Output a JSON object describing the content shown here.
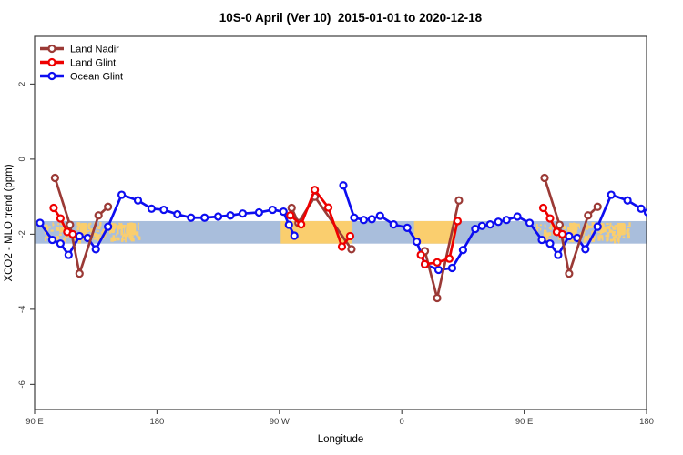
{
  "title": "10S-0 April (Ver 10)  2015-01-01 to 2020-12-18",
  "axis": {
    "x_label": "Longitude",
    "y_label": "XCO2 - MLO trend (ppm)"
  },
  "legend": [
    {
      "label": "Land Nadir",
      "color": "#9B3A36"
    },
    {
      "label": "Land Glint",
      "color": "#EE0000"
    },
    {
      "label": "Ocean Glint",
      "color": "#0D0DF0"
    }
  ],
  "chart_data": {
    "type": "line",
    "title": "10S-0 April (Ver 10)  2015-01-01 to 2020-12-18",
    "xlabel": "Longitude",
    "ylabel": "XCO2 - MLO trend (ppm)",
    "x_axis": {
      "range_deg": [
        0,
        450
      ],
      "ticks": [
        {
          "pos": 0,
          "label": "90 E"
        },
        {
          "pos": 90,
          "label": "180"
        },
        {
          "pos": 180,
          "label": "90 W"
        },
        {
          "pos": 270,
          "label": "0"
        },
        {
          "pos": 360,
          "label": "90 E"
        },
        {
          "pos": 450,
          "label": "180"
        }
      ]
    },
    "y_axis": {
      "range": [
        -6.67,
        3.27
      ],
      "ticks": [
        2,
        0,
        -2,
        -4,
        -6
      ]
    },
    "reference_band": {
      "y_from": -2.25,
      "y_to": -1.65,
      "ocean_color": "#A9BEDC",
      "land_color": "#FACE6E",
      "land_solid_deg": [
        [
          181,
          233
        ],
        [
          279,
          309
        ]
      ],
      "island_blobs": [
        {
          "from": 33.5,
          "to": 39,
          "hfrac": 0.5
        },
        {
          "from": 56,
          "to": 59,
          "hfrac": 0.45
        },
        {
          "from": 68,
          "to": 74.5,
          "hfrac": 0.55
        },
        {
          "from": 393.5,
          "to": 399,
          "hfrac": 0.5
        },
        {
          "from": 416,
          "to": 419,
          "hfrac": 0.45
        },
        {
          "from": 428,
          "to": 434.5,
          "hfrac": 0.55
        }
      ],
      "speckle_clusters": [
        {
          "from": 7,
          "to": 30,
          "density": 1.6,
          "seed": 11
        },
        {
          "from": 31,
          "to": 41,
          "density": 3.5,
          "seed": 23
        },
        {
          "from": 43,
          "to": 52,
          "density": 2.5,
          "seed": 37
        },
        {
          "from": 54,
          "to": 77,
          "density": 3.2,
          "seed": 51
        },
        {
          "from": 367,
          "to": 390,
          "density": 1.6,
          "seed": 61
        },
        {
          "from": 391,
          "to": 401,
          "density": 3.5,
          "seed": 73
        },
        {
          "from": 403,
          "to": 412,
          "density": 2.5,
          "seed": 87
        },
        {
          "from": 414,
          "to": 437,
          "density": 3.2,
          "seed": 95
        }
      ]
    },
    "series": [
      {
        "name": "Ocean Glint",
        "color": "#0D0DF0",
        "segments": [
          [
            [
              4,
              -1.7
            ],
            [
              13,
              -2.15
            ],
            [
              19,
              -2.25
            ],
            [
              25,
              -2.55
            ],
            [
              33,
              -2.05
            ],
            [
              39,
              -2.1
            ],
            [
              45,
              -2.4
            ],
            [
              54,
              -1.8
            ],
            [
              64,
              -0.95
            ],
            [
              76,
              -1.1
            ],
            [
              86,
              -1.32
            ],
            [
              95,
              -1.35
            ],
            [
              105,
              -1.47
            ],
            [
              115,
              -1.56
            ],
            [
              125,
              -1.56
            ],
            [
              135,
              -1.53
            ],
            [
              144,
              -1.5
            ],
            [
              153,
              -1.45
            ],
            [
              165,
              -1.42
            ],
            [
              175,
              -1.35
            ],
            [
              183,
              -1.4
            ],
            [
              187,
              -1.75
            ],
            [
              191,
              -2.04
            ]
          ],
          [
            [
              227,
              -0.7
            ],
            [
              235,
              -1.56
            ],
            [
              242,
              -1.62
            ],
            [
              248,
              -1.6
            ],
            [
              254,
              -1.51
            ],
            [
              264,
              -1.74
            ],
            [
              274,
              -1.83
            ],
            [
              281,
              -2.2
            ],
            [
              287,
              -2.8
            ],
            [
              297,
              -2.95
            ],
            [
              307,
              -2.9
            ],
            [
              315,
              -2.42
            ],
            [
              324,
              -1.86
            ],
            [
              329,
              -1.78
            ],
            [
              335,
              -1.74
            ],
            [
              341,
              -1.67
            ],
            [
              347,
              -1.62
            ],
            [
              355,
              -1.53
            ],
            [
              364,
              -1.7
            ],
            [
              373,
              -2.15
            ],
            [
              379,
              -2.25
            ],
            [
              385,
              -2.55
            ],
            [
              393,
              -2.05
            ],
            [
              399,
              -2.1
            ],
            [
              405,
              -2.4
            ],
            [
              414,
              -1.8
            ],
            [
              424,
              -0.95
            ],
            [
              436,
              -1.1
            ],
            [
              446,
              -1.32
            ],
            [
              451,
              -1.42
            ]
          ]
        ]
      },
      {
        "name": "Land Nadir",
        "color": "#9B3A36",
        "segments": [
          [
            [
              15,
              -0.5
            ],
            [
              26,
              -1.75
            ],
            [
              33,
              -3.05
            ],
            [
              47,
              -1.5
            ],
            [
              54,
              -1.27
            ]
          ],
          [
            [
              189,
              -1.3
            ],
            [
              194,
              -1.7
            ],
            [
              206,
              -1.0
            ],
            [
              233,
              -2.4
            ]
          ],
          [
            [
              287,
              -2.45
            ],
            [
              296,
              -3.7
            ],
            [
              312,
              -1.1
            ]
          ],
          [
            [
              375,
              -0.5
            ],
            [
              386,
              -1.75
            ],
            [
              393,
              -3.05
            ],
            [
              407,
              -1.5
            ],
            [
              414,
              -1.27
            ]
          ]
        ]
      },
      {
        "name": "Land Glint",
        "color": "#EE0000",
        "segments": [
          [
            [
              14,
              -1.3
            ],
            [
              19,
              -1.58
            ],
            [
              24,
              -1.94
            ],
            [
              28,
              -2.0
            ]
          ],
          [
            [
              188,
              -1.5
            ],
            [
              196,
              -1.74
            ],
            [
              206,
              -0.82
            ],
            [
              216,
              -1.29
            ],
            [
              226,
              -2.33
            ],
            [
              232,
              -2.05
            ]
          ],
          [
            [
              284,
              -2.55
            ],
            [
              287,
              -2.8
            ],
            [
              296,
              -2.75
            ],
            [
              305,
              -2.65
            ],
            [
              311,
              -1.65
            ]
          ],
          [
            [
              374,
              -1.3
            ],
            [
              379,
              -1.58
            ],
            [
              384,
              -1.94
            ],
            [
              388,
              -2.0
            ]
          ]
        ]
      }
    ]
  }
}
